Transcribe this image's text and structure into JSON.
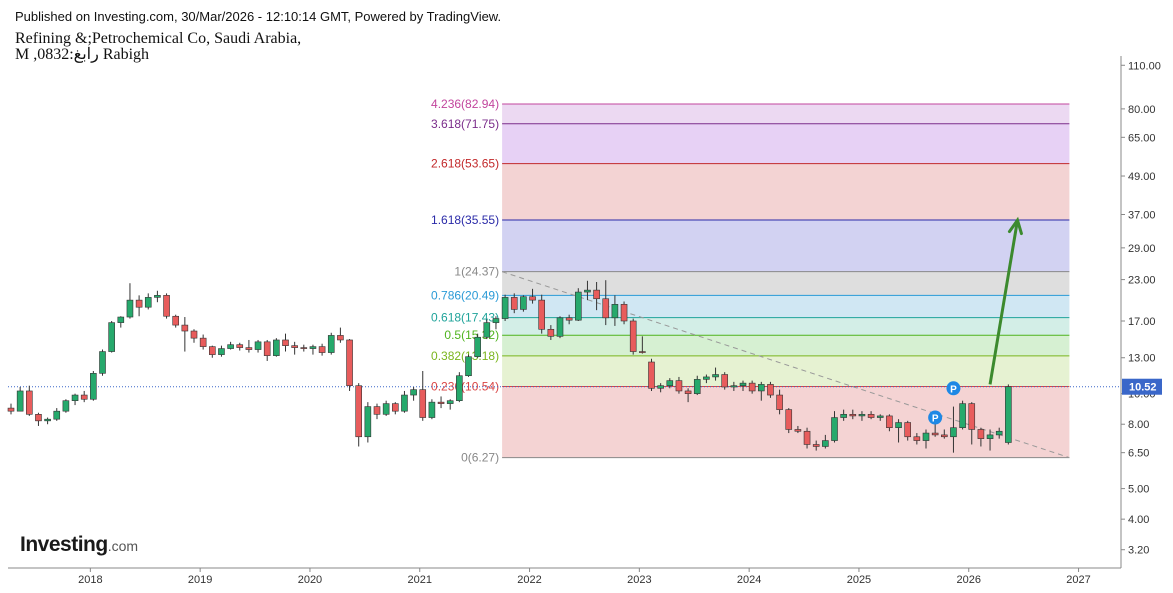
{
  "header": {
    "published": "Published on Investing.com, 30/Mar/2026 - 12:10:14 GMT, Powered by TradingView.",
    "title_line1": "Refining &;Petrochemical Co, Saudi Arabia,",
    "title_line2": "M ,0832:رابغ Rabigh"
  },
  "logo": {
    "brand": "Investing",
    "domain": ".com"
  },
  "colors": {
    "up": "#26a96c",
    "down": "#e85c5c",
    "trend": "#999999",
    "arrow": "#3c8a2e",
    "price_tag": "#3a67c9",
    "marker": "#1e88e5"
  },
  "chart_data": {
    "type": "candlestick",
    "title": "Refining &;Petrochemical Co, Saudi Arabia,",
    "interval": "M",
    "scale": "log",
    "ylim": [
      2.8,
      116
    ],
    "y_ticks": [
      3.2,
      4.0,
      5.0,
      6.5,
      8.0,
      10.0,
      13.0,
      17.0,
      23.0,
      29.0,
      37.0,
      49.0,
      65.0,
      80.0,
      110.0
    ],
    "y_tick_labels": [
      "3.20",
      "4.00",
      "5.00",
      "6.50",
      "8.00",
      "10.00",
      "13.00",
      "17.00",
      "23.00",
      "29.00",
      "37.00",
      "49.00",
      "65.00",
      "80.00",
      "110.00"
    ],
    "x_ticks": [
      "2018",
      "2019",
      "2020",
      "2021",
      "2022",
      "2023",
      "2024",
      "2025",
      "2026",
      "2027"
    ],
    "last_price": 10.52,
    "last_price_label": "10.52",
    "fibonacci": {
      "start": "2021-10",
      "end": "2026-12",
      "levels": [
        {
          "label": "4.236(82.94)",
          "value": 82.94,
          "color": "#c2459d",
          "fill": "#ecd9f2"
        },
        {
          "label": "3.618(71.75)",
          "value": 71.75,
          "color": "#7b2d8b",
          "fill": "#e7d1f5"
        },
        {
          "label": "2.618(53.65)",
          "value": 53.65,
          "color": "#c2282a",
          "fill": "#f3d3d3"
        },
        {
          "label": "1.618(35.55)",
          "value": 35.55,
          "color": "#2a2aa8",
          "fill": "#d2d2f2"
        },
        {
          "label": "1(24.37)",
          "value": 24.37,
          "color": "#888888",
          "fill": "#dedede"
        },
        {
          "label": "0.786(20.49)",
          "value": 20.49,
          "color": "#2a9ad6",
          "fill": "#d0e7f3"
        },
        {
          "label": "0.618(17.43)",
          "value": 17.43,
          "color": "#1fa39a",
          "fill": "#d3eee7"
        },
        {
          "label": "0.5(15.32)",
          "value": 15.32,
          "color": "#4fb31e",
          "fill": "#d6f0d2"
        },
        {
          "label": "0.382(13.18)",
          "value": 13.18,
          "color": "#7ab51d",
          "fill": "#e6f2d2"
        },
        {
          "label": "0.236(10.54)",
          "value": 10.54,
          "color": "#d94545",
          "fill": "#f4d3d3"
        },
        {
          "label": "0(6.27)",
          "value": 6.27,
          "color": "#888888",
          "fill": "#f4d3d3"
        }
      ]
    },
    "trendline": {
      "from": {
        "x": "2021-10",
        "y": 24.37
      },
      "to": {
        "x": "2026-12",
        "y": 6.27
      }
    },
    "projection_arrow": {
      "from": {
        "x": "2026-03",
        "y": 10.7
      },
      "to": {
        "x": "2026-06",
        "y": 35.5
      }
    },
    "markers": [
      {
        "label": "P",
        "x": "2025-09",
        "y": 8.4
      },
      {
        "label": "P",
        "x": "2025-11",
        "y": 10.4
      }
    ],
    "candles": [
      {
        "t": "2017-04",
        "o": 9.0,
        "h": 9.3,
        "l": 8.6,
        "c": 8.8
      },
      {
        "t": "2017-05",
        "o": 8.8,
        "h": 10.5,
        "l": 8.8,
        "c": 10.2
      },
      {
        "t": "2017-06",
        "o": 10.2,
        "h": 10.6,
        "l": 8.5,
        "c": 8.6
      },
      {
        "t": "2017-07",
        "o": 8.6,
        "h": 8.7,
        "l": 7.9,
        "c": 8.2
      },
      {
        "t": "2017-08",
        "o": 8.2,
        "h": 8.4,
        "l": 8.0,
        "c": 8.3
      },
      {
        "t": "2017-09",
        "o": 8.3,
        "h": 9.0,
        "l": 8.2,
        "c": 8.8
      },
      {
        "t": "2017-10",
        "o": 8.8,
        "h": 9.6,
        "l": 8.7,
        "c": 9.5
      },
      {
        "t": "2017-11",
        "o": 9.5,
        "h": 10.0,
        "l": 9.2,
        "c": 9.9
      },
      {
        "t": "2017-12",
        "o": 9.9,
        "h": 10.2,
        "l": 9.4,
        "c": 9.6
      },
      {
        "t": "2018-01",
        "o": 9.6,
        "h": 11.8,
        "l": 9.5,
        "c": 11.6
      },
      {
        "t": "2018-02",
        "o": 11.6,
        "h": 13.8,
        "l": 11.4,
        "c": 13.6
      },
      {
        "t": "2018-03",
        "o": 13.6,
        "h": 17.0,
        "l": 13.5,
        "c": 16.8
      },
      {
        "t": "2018-04",
        "o": 16.8,
        "h": 17.6,
        "l": 16.2,
        "c": 17.5
      },
      {
        "t": "2018-05",
        "o": 17.5,
        "h": 22.4,
        "l": 17.3,
        "c": 19.8
      },
      {
        "t": "2018-06",
        "o": 19.8,
        "h": 20.5,
        "l": 17.6,
        "c": 18.8
      },
      {
        "t": "2018-07",
        "o": 18.8,
        "h": 20.8,
        "l": 18.5,
        "c": 20.2
      },
      {
        "t": "2018-08",
        "o": 20.2,
        "h": 21.2,
        "l": 19.5,
        "c": 20.5
      },
      {
        "t": "2018-09",
        "o": 20.5,
        "h": 20.8,
        "l": 17.3,
        "c": 17.6
      },
      {
        "t": "2018-10",
        "o": 17.6,
        "h": 17.8,
        "l": 16.2,
        "c": 16.5
      },
      {
        "t": "2018-11",
        "o": 16.5,
        "h": 17.5,
        "l": 13.6,
        "c": 15.8
      },
      {
        "t": "2018-12",
        "o": 15.8,
        "h": 16.0,
        "l": 14.5,
        "c": 15.0
      },
      {
        "t": "2019-01",
        "o": 15.0,
        "h": 15.4,
        "l": 13.8,
        "c": 14.1
      },
      {
        "t": "2019-02",
        "o": 14.1,
        "h": 14.2,
        "l": 13.0,
        "c": 13.3
      },
      {
        "t": "2019-03",
        "o": 13.3,
        "h": 14.2,
        "l": 13.1,
        "c": 13.9
      },
      {
        "t": "2019-04",
        "o": 13.9,
        "h": 14.6,
        "l": 13.8,
        "c": 14.3
      },
      {
        "t": "2019-05",
        "o": 14.3,
        "h": 14.5,
        "l": 13.7,
        "c": 14.0
      },
      {
        "t": "2019-06",
        "o": 14.0,
        "h": 14.8,
        "l": 13.5,
        "c": 13.8
      },
      {
        "t": "2019-07",
        "o": 13.8,
        "h": 14.8,
        "l": 13.5,
        "c": 14.6
      },
      {
        "t": "2019-08",
        "o": 14.6,
        "h": 14.8,
        "l": 12.7,
        "c": 13.2
      },
      {
        "t": "2019-09",
        "o": 13.2,
        "h": 15.0,
        "l": 13.1,
        "c": 14.8
      },
      {
        "t": "2019-10",
        "o": 14.8,
        "h": 15.5,
        "l": 13.6,
        "c": 14.2
      },
      {
        "t": "2019-11",
        "o": 14.2,
        "h": 14.6,
        "l": 13.3,
        "c": 14.0
      },
      {
        "t": "2019-12",
        "o": 14.0,
        "h": 14.3,
        "l": 13.6,
        "c": 13.9
      },
      {
        "t": "2020-01",
        "o": 13.9,
        "h": 14.3,
        "l": 13.3,
        "c": 14.1
      },
      {
        "t": "2020-02",
        "o": 14.1,
        "h": 14.4,
        "l": 13.2,
        "c": 13.5
      },
      {
        "t": "2020-03",
        "o": 13.5,
        "h": 15.6,
        "l": 13.3,
        "c": 15.3
      },
      {
        "t": "2020-04",
        "o": 15.3,
        "h": 16.2,
        "l": 14.5,
        "c": 14.8
      },
      {
        "t": "2020-05",
        "o": 14.8,
        "h": 14.9,
        "l": 10.2,
        "c": 10.6
      },
      {
        "t": "2020-06",
        "o": 10.6,
        "h": 10.8,
        "l": 6.8,
        "c": 7.3
      },
      {
        "t": "2020-07",
        "o": 7.3,
        "h": 9.4,
        "l": 7.0,
        "c": 9.1
      },
      {
        "t": "2020-08",
        "o": 9.1,
        "h": 9.3,
        "l": 8.3,
        "c": 8.6
      },
      {
        "t": "2020-09",
        "o": 8.6,
        "h": 9.5,
        "l": 8.5,
        "c": 9.3
      },
      {
        "t": "2020-10",
        "o": 9.3,
        "h": 9.4,
        "l": 8.6,
        "c": 8.8
      },
      {
        "t": "2020-11",
        "o": 8.8,
        "h": 10.2,
        "l": 8.7,
        "c": 9.9
      },
      {
        "t": "2020-12",
        "o": 9.9,
        "h": 10.5,
        "l": 9.5,
        "c": 10.3
      },
      {
        "t": "2021-01",
        "o": 10.3,
        "h": 11.8,
        "l": 8.2,
        "c": 8.4
      },
      {
        "t": "2021-02",
        "o": 8.4,
        "h": 9.6,
        "l": 8.3,
        "c": 9.4
      },
      {
        "t": "2021-03",
        "o": 9.4,
        "h": 9.8,
        "l": 9.0,
        "c": 9.3
      },
      {
        "t": "2021-04",
        "o": 9.3,
        "h": 9.6,
        "l": 8.9,
        "c": 9.5
      },
      {
        "t": "2021-05",
        "o": 9.5,
        "h": 11.7,
        "l": 9.4,
        "c": 11.4
      },
      {
        "t": "2021-06",
        "o": 11.4,
        "h": 13.3,
        "l": 11.3,
        "c": 13.1
      },
      {
        "t": "2021-07",
        "o": 13.1,
        "h": 15.5,
        "l": 13.0,
        "c": 15.1
      },
      {
        "t": "2021-08",
        "o": 15.1,
        "h": 17.2,
        "l": 14.9,
        "c": 16.8
      },
      {
        "t": "2021-09",
        "o": 16.8,
        "h": 17.6,
        "l": 16.0,
        "c": 17.3
      },
      {
        "t": "2021-10",
        "o": 17.3,
        "h": 20.6,
        "l": 17.0,
        "c": 20.2
      },
      {
        "t": "2021-11",
        "o": 20.2,
        "h": 20.8,
        "l": 18.0,
        "c": 18.5
      },
      {
        "t": "2021-12",
        "o": 18.5,
        "h": 20.5,
        "l": 18.2,
        "c": 20.3
      },
      {
        "t": "2022-01",
        "o": 20.3,
        "h": 21.5,
        "l": 19.3,
        "c": 19.8
      },
      {
        "t": "2022-02",
        "o": 19.8,
        "h": 20.6,
        "l": 15.5,
        "c": 16.0
      },
      {
        "t": "2022-03",
        "o": 16.0,
        "h": 16.5,
        "l": 14.8,
        "c": 15.2
      },
      {
        "t": "2022-04",
        "o": 15.2,
        "h": 17.6,
        "l": 15.0,
        "c": 17.4
      },
      {
        "t": "2022-05",
        "o": 17.4,
        "h": 17.8,
        "l": 16.6,
        "c": 17.1
      },
      {
        "t": "2022-06",
        "o": 17.1,
        "h": 21.6,
        "l": 17.0,
        "c": 21.0
      },
      {
        "t": "2022-07",
        "o": 21.0,
        "h": 22.8,
        "l": 19.8,
        "c": 21.3
      },
      {
        "t": "2022-08",
        "o": 21.3,
        "h": 22.6,
        "l": 18.4,
        "c": 20.0
      },
      {
        "t": "2022-09",
        "o": 20.0,
        "h": 22.9,
        "l": 16.5,
        "c": 17.4
      },
      {
        "t": "2022-10",
        "o": 17.4,
        "h": 20.5,
        "l": 16.4,
        "c": 19.2
      },
      {
        "t": "2022-11",
        "o": 19.2,
        "h": 19.6,
        "l": 16.6,
        "c": 17.0
      },
      {
        "t": "2022-12",
        "o": 17.0,
        "h": 17.3,
        "l": 13.3,
        "c": 13.6
      },
      {
        "t": "2023-01",
        "o": 13.6,
        "h": 15.2,
        "l": 13.4,
        "c": 13.5
      },
      {
        "t": "2023-02",
        "o": 12.6,
        "h": 12.9,
        "l": 10.2,
        "c": 10.4
      },
      {
        "t": "2023-03",
        "o": 10.4,
        "h": 10.8,
        "l": 10.1,
        "c": 10.6
      },
      {
        "t": "2023-04",
        "o": 10.6,
        "h": 11.2,
        "l": 10.4,
        "c": 11.0
      },
      {
        "t": "2023-05",
        "o": 11.0,
        "h": 11.3,
        "l": 10.0,
        "c": 10.2
      },
      {
        "t": "2023-06",
        "o": 10.2,
        "h": 10.4,
        "l": 9.4,
        "c": 10.0
      },
      {
        "t": "2023-07",
        "o": 10.0,
        "h": 11.4,
        "l": 9.9,
        "c": 11.1
      },
      {
        "t": "2023-08",
        "o": 11.1,
        "h": 11.5,
        "l": 10.8,
        "c": 11.3
      },
      {
        "t": "2023-09",
        "o": 11.3,
        "h": 12.1,
        "l": 11.0,
        "c": 11.5
      },
      {
        "t": "2023-10",
        "o": 11.5,
        "h": 11.7,
        "l": 10.3,
        "c": 10.5
      },
      {
        "t": "2023-11",
        "o": 10.5,
        "h": 10.9,
        "l": 10.2,
        "c": 10.6
      },
      {
        "t": "2023-12",
        "o": 10.6,
        "h": 11.0,
        "l": 10.2,
        "c": 10.8
      },
      {
        "t": "2024-01",
        "o": 10.8,
        "h": 11.0,
        "l": 10.0,
        "c": 10.2
      },
      {
        "t": "2024-02",
        "o": 10.2,
        "h": 10.9,
        "l": 9.5,
        "c": 10.7
      },
      {
        "t": "2024-03",
        "o": 10.7,
        "h": 10.9,
        "l": 9.7,
        "c": 9.9
      },
      {
        "t": "2024-04",
        "o": 9.9,
        "h": 10.3,
        "l": 8.6,
        "c": 8.9
      },
      {
        "t": "2024-05",
        "o": 8.9,
        "h": 9.0,
        "l": 7.5,
        "c": 7.7
      },
      {
        "t": "2024-06",
        "o": 7.7,
        "h": 7.9,
        "l": 7.5,
        "c": 7.6
      },
      {
        "t": "2024-07",
        "o": 7.6,
        "h": 7.8,
        "l": 6.7,
        "c": 6.9
      },
      {
        "t": "2024-08",
        "o": 6.9,
        "h": 7.1,
        "l": 6.6,
        "c": 6.8
      },
      {
        "t": "2024-09",
        "o": 6.8,
        "h": 7.4,
        "l": 6.7,
        "c": 7.1
      },
      {
        "t": "2024-10",
        "o": 7.1,
        "h": 8.8,
        "l": 7.0,
        "c": 8.4
      },
      {
        "t": "2024-11",
        "o": 8.4,
        "h": 8.9,
        "l": 8.2,
        "c": 8.6
      },
      {
        "t": "2024-12",
        "o": 8.6,
        "h": 8.9,
        "l": 8.3,
        "c": 8.5
      },
      {
        "t": "2025-01",
        "o": 8.5,
        "h": 8.8,
        "l": 8.2,
        "c": 8.6
      },
      {
        "t": "2025-02",
        "o": 8.6,
        "h": 8.8,
        "l": 8.3,
        "c": 8.4
      },
      {
        "t": "2025-03",
        "o": 8.4,
        "h": 8.6,
        "l": 8.2,
        "c": 8.5
      },
      {
        "t": "2025-04",
        "o": 8.5,
        "h": 8.6,
        "l": 7.6,
        "c": 7.8
      },
      {
        "t": "2025-05",
        "o": 7.8,
        "h": 8.3,
        "l": 7.0,
        "c": 8.1
      },
      {
        "t": "2025-06",
        "o": 8.1,
        "h": 8.2,
        "l": 7.1,
        "c": 7.3
      },
      {
        "t": "2025-07",
        "o": 7.3,
        "h": 7.5,
        "l": 6.9,
        "c": 7.1
      },
      {
        "t": "2025-08",
        "o": 7.1,
        "h": 7.7,
        "l": 6.7,
        "c": 7.5
      },
      {
        "t": "2025-09",
        "o": 7.5,
        "h": 8.2,
        "l": 7.3,
        "c": 7.4
      },
      {
        "t": "2025-10",
        "o": 7.4,
        "h": 7.7,
        "l": 7.2,
        "c": 7.3
      },
      {
        "t": "2025-11",
        "o": 7.3,
        "h": 9.1,
        "l": 6.5,
        "c": 7.8
      },
      {
        "t": "2025-12",
        "o": 7.8,
        "h": 9.5,
        "l": 7.7,
        "c": 9.3
      },
      {
        "t": "2026-01",
        "o": 9.3,
        "h": 9.4,
        "l": 6.9,
        "c": 7.7
      },
      {
        "t": "2026-02",
        "o": 7.7,
        "h": 7.8,
        "l": 6.8,
        "c": 7.2
      },
      {
        "t": "2026-03",
        "o": 7.2,
        "h": 7.7,
        "l": 6.6,
        "c": 7.4
      },
      {
        "t": "2026-04",
        "o": 7.4,
        "h": 7.8,
        "l": 7.2,
        "c": 7.6
      },
      {
        "t": "2026-05",
        "o": 7.0,
        "h": 10.7,
        "l": 6.9,
        "c": 10.52
      }
    ]
  }
}
